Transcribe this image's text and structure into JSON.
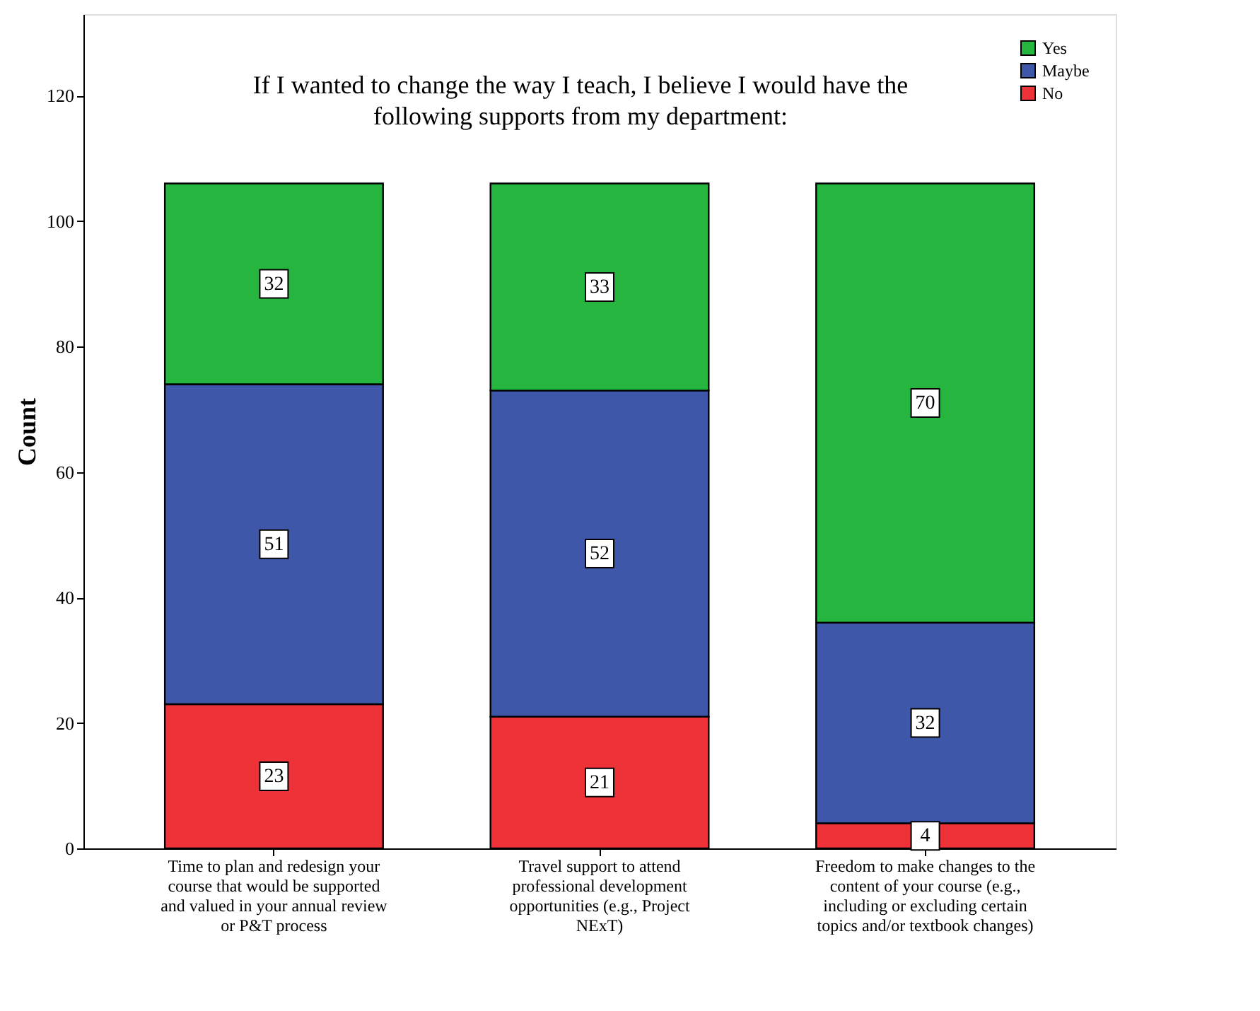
{
  "chart_data": {
    "type": "bar",
    "stacked": true,
    "title": "If I wanted to change the way I teach, I believe I would have the following supports from my department:",
    "ylabel": "Count",
    "categories": [
      "Time to plan and redesign your course that would be supported and valued in your annual review or P&T process",
      "Travel support to attend professional development opportunities (e.g., Project NExT)",
      "Freedom to make changes to the content of your course (e.g., including or excluding certain topics and/or textbook changes)"
    ],
    "series": [
      {
        "name": "No",
        "color": "#ee3338",
        "values": [
          23,
          21,
          4
        ]
      },
      {
        "name": "Maybe",
        "color": "#3f57a9",
        "values": [
          51,
          52,
          32
        ]
      },
      {
        "name": "Yes",
        "color": "#26b53f",
        "values": [
          32,
          33,
          70
        ]
      }
    ],
    "ylim": [
      0,
      133
    ],
    "yticks": [
      0,
      20,
      40,
      60,
      80,
      100,
      120
    ],
    "data_labels": true,
    "legend": "top right",
    "grid": false
  }
}
